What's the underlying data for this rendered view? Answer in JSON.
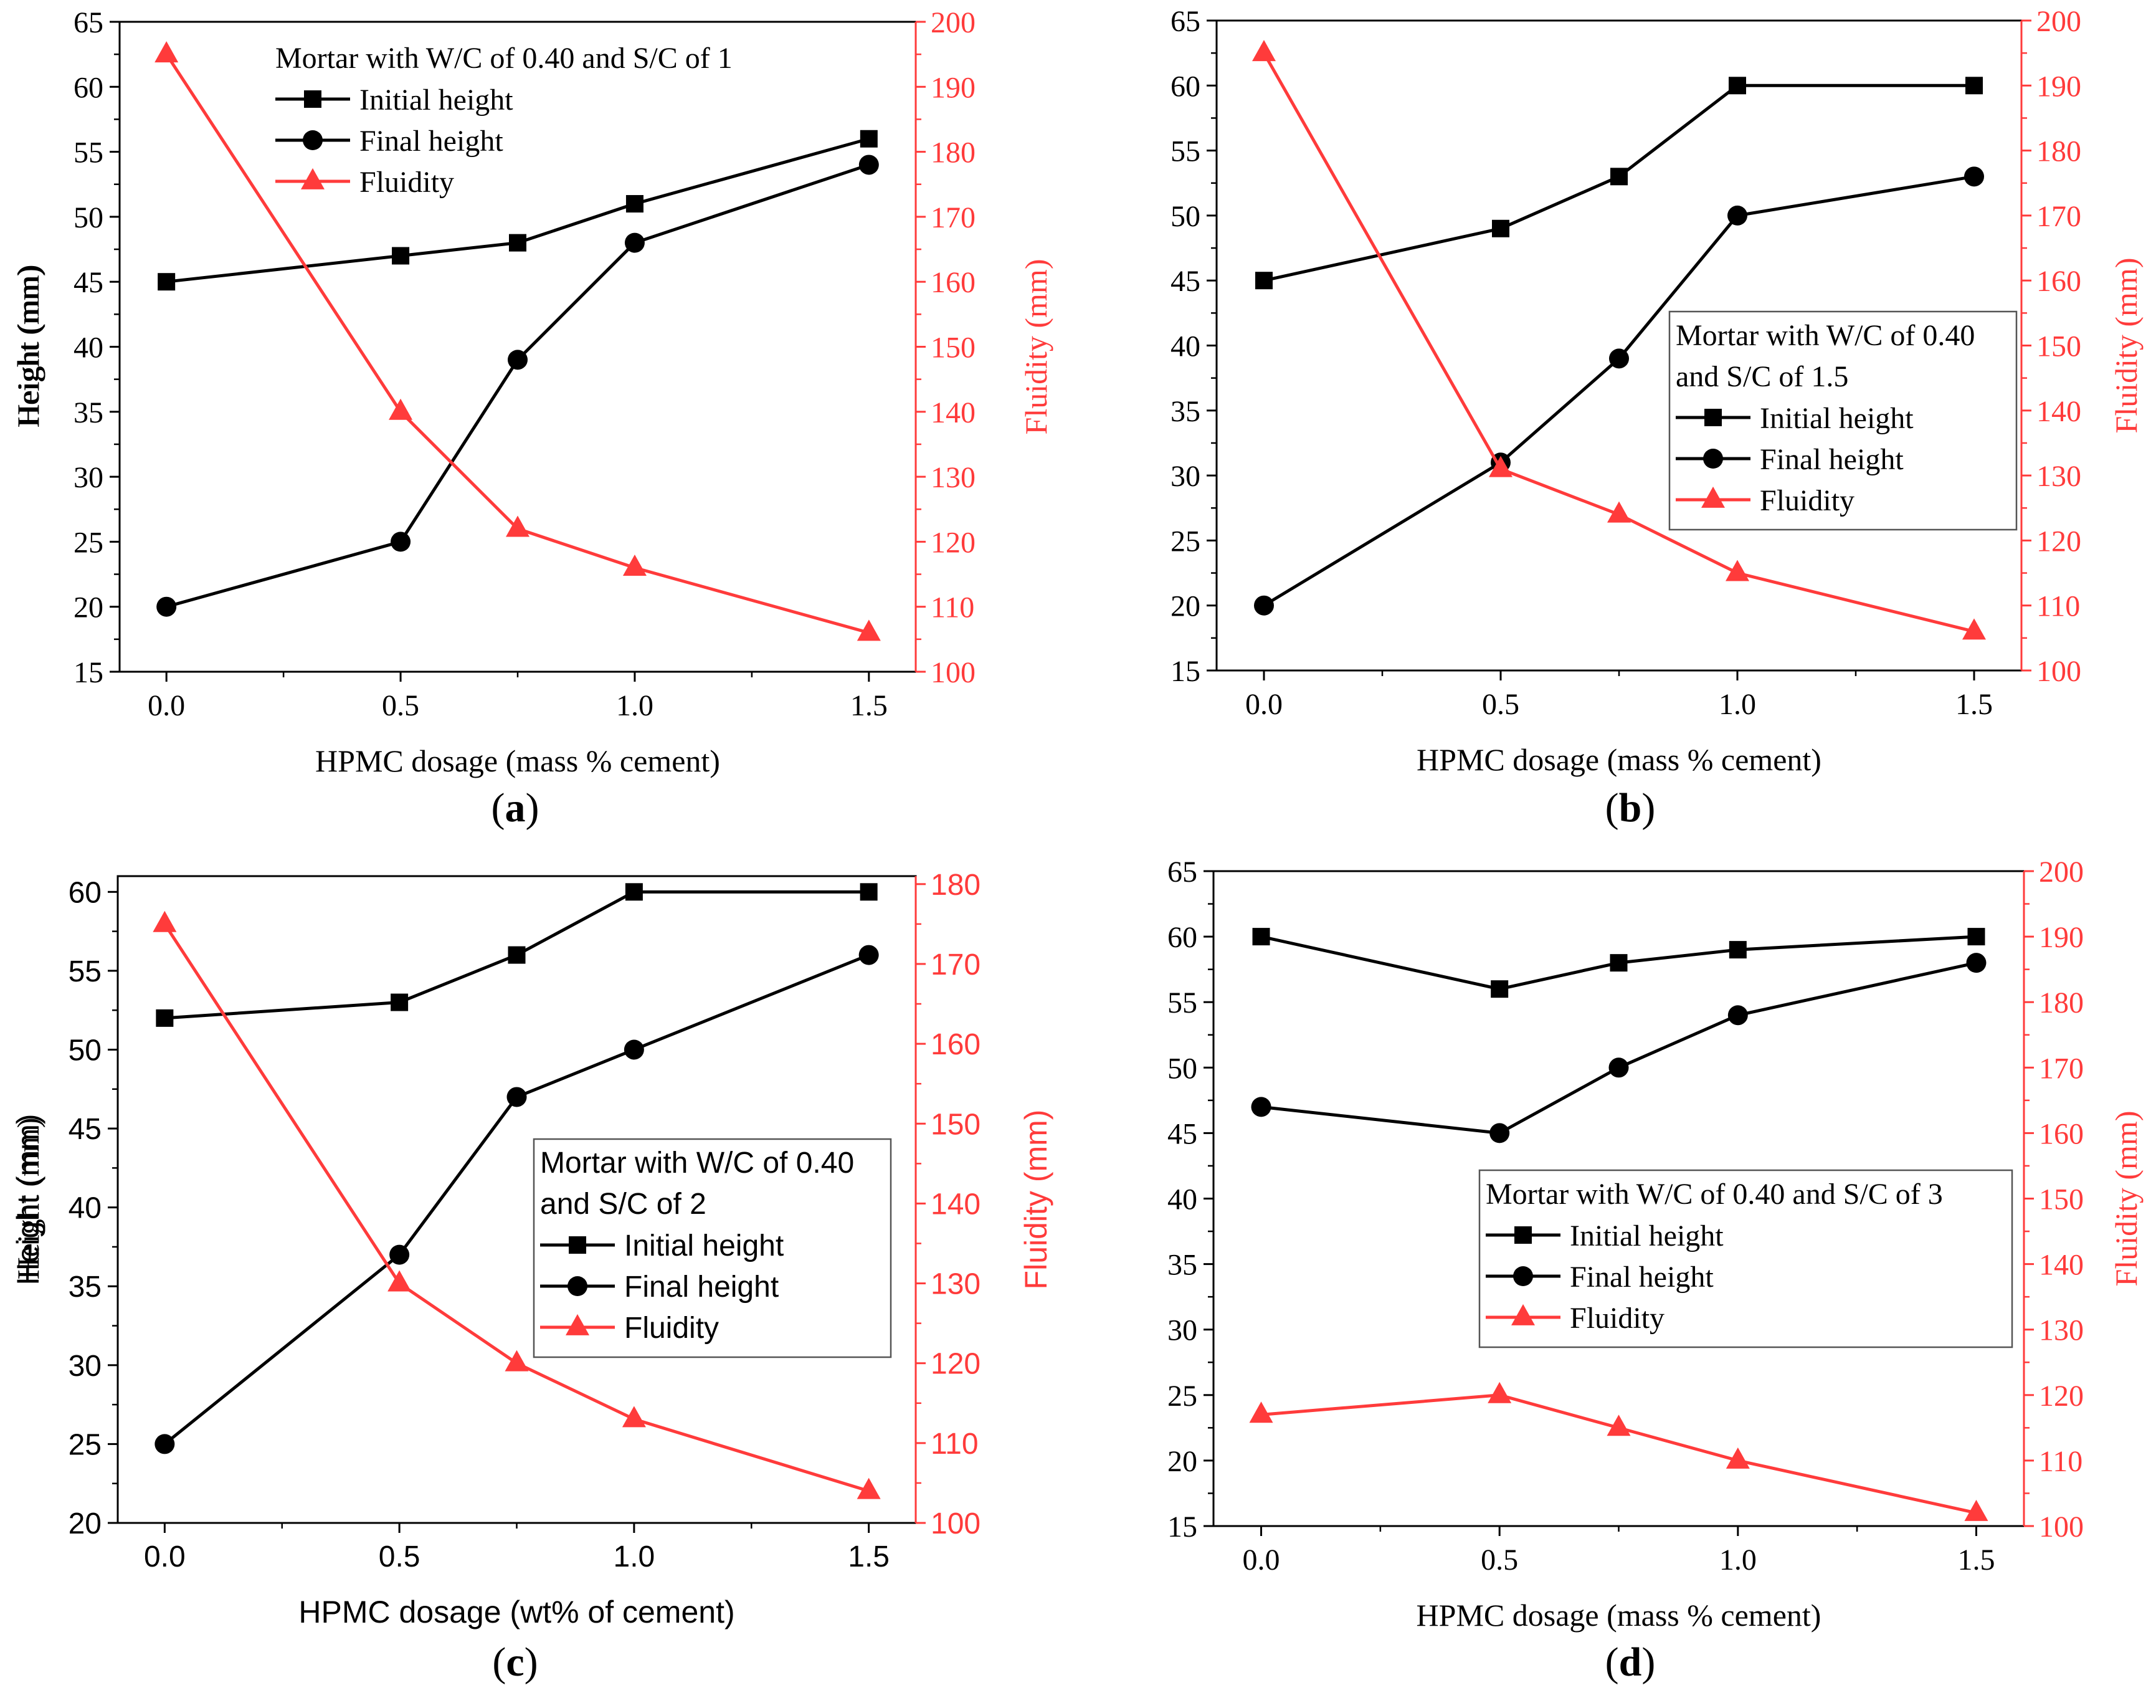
{
  "colors": {
    "left_axis": "#000000",
    "right_axis": "#ff3b3b",
    "fluidity": "#ff3b3b",
    "height": "#000000"
  },
  "chart_data": [
    {
      "panel_label": "(a)",
      "panel_letter": "a",
      "font": "serif",
      "type": "line",
      "x": [
        0.0,
        0.5,
        0.75,
        1.0,
        1.5
      ],
      "xlabel": "HPMC dosage (mass % cement)",
      "xticks": [
        "0.0",
        "0.5",
        "1.0",
        "1.5"
      ],
      "xlim": [
        -0.1,
        1.6
      ],
      "ylabel": "Height (mm)",
      "ylim": [
        15,
        65
      ],
      "yticks": [
        "15",
        "20",
        "25",
        "30",
        "35",
        "40",
        "45",
        "50",
        "55",
        "60",
        "65"
      ],
      "y2label": "Fluidity (mm)",
      "y2lim": [
        100,
        200
      ],
      "y2ticks": [
        "100",
        "110",
        "120",
        "130",
        "140",
        "150",
        "160",
        "170",
        "180",
        "190",
        "200"
      ],
      "legend": {
        "lines": [
          "Mortar with W/C of 0.40 and S/C of 1"
        ],
        "placement": "top-center",
        "frame": false
      },
      "series": [
        {
          "name": "Initial height",
          "marker": "square",
          "axis": "left",
          "values": [
            45,
            47,
            48,
            51,
            56
          ]
        },
        {
          "name": "Final height",
          "marker": "circle",
          "axis": "left",
          "values": [
            20,
            25,
            39,
            48,
            54
          ]
        },
        {
          "name": "Fluidity",
          "marker": "triangle",
          "axis": "right",
          "values": [
            195,
            140,
            122,
            116,
            106
          ]
        }
      ]
    },
    {
      "panel_label": "(b)",
      "panel_letter": "b",
      "font": "serif",
      "type": "line",
      "x": [
        0.0,
        0.5,
        0.75,
        1.0,
        1.5
      ],
      "xlabel": "HPMC dosage (mass % cement)",
      "xticks": [
        "0.0",
        "0.5",
        "1.0",
        "1.5"
      ],
      "xlim": [
        -0.1,
        1.6
      ],
      "ylabel": "Height (mm)",
      "ylim": [
        15,
        65
      ],
      "yticks": [
        "15",
        "20",
        "25",
        "30",
        "35",
        "40",
        "45",
        "50",
        "55",
        "60",
        "65"
      ],
      "y2label": "Fluidity (mm)",
      "y2lim": [
        100,
        200
      ],
      "y2ticks": [
        "100",
        "110",
        "120",
        "130",
        "140",
        "150",
        "160",
        "170",
        "180",
        "190",
        "200"
      ],
      "legend": {
        "lines": [
          "Mortar with W/C of 0.40",
          "and S/C of 1.5"
        ],
        "placement": "center-right",
        "frame": true
      },
      "series": [
        {
          "name": "Initial height",
          "marker": "square",
          "axis": "left",
          "values": [
            45,
            49,
            53,
            60,
            60
          ]
        },
        {
          "name": "Final height",
          "marker": "circle",
          "axis": "left",
          "values": [
            20,
            31,
            39,
            50,
            53
          ]
        },
        {
          "name": "Fluidity",
          "marker": "triangle",
          "axis": "right",
          "values": [
            195,
            131,
            124,
            115,
            106
          ]
        }
      ]
    },
    {
      "panel_label": "(c)",
      "panel_letter": "c",
      "font": "sans",
      "type": "line",
      "x": [
        0.0,
        0.5,
        0.75,
        1.0,
        1.5
      ],
      "xlabel": "HPMC dosage (wt% of cement)",
      "xticks": [
        "0.0",
        "0.5",
        "1.0",
        "1.5"
      ],
      "xlim": [
        -0.1,
        1.6
      ],
      "ylabel": "Height (mm)",
      "ylim": [
        20,
        61
      ],
      "yticks": [
        "20",
        "25",
        "30",
        "35",
        "40",
        "45",
        "50",
        "55",
        "60"
      ],
      "y2label": "Fluidity (mm)",
      "y2lim": [
        100,
        181
      ],
      "y2ticks": [
        "100",
        "110",
        "120",
        "130",
        "140",
        "150",
        "160",
        "170",
        "180"
      ],
      "legend": {
        "lines": [
          "Mortar with W/C of 0.40",
          "and S/C of 2"
        ],
        "placement": "center-right",
        "frame": true
      },
      "series": [
        {
          "name": "Initial height",
          "marker": "square",
          "axis": "left",
          "values": [
            52,
            53,
            56,
            60,
            60
          ]
        },
        {
          "name": "Final height",
          "marker": "circle",
          "axis": "left",
          "values": [
            25,
            37,
            47,
            50,
            56
          ]
        },
        {
          "name": "Fluidity",
          "marker": "triangle",
          "axis": "right",
          "values": [
            175,
            130,
            120,
            113,
            104
          ]
        }
      ]
    },
    {
      "panel_label": "(d)",
      "panel_letter": "d",
      "font": "serif",
      "type": "line",
      "x": [
        0.0,
        0.5,
        0.75,
        1.0,
        1.5
      ],
      "xlabel": "HPMC dosage (mass % cement)",
      "xticks": [
        "0.0",
        "0.5",
        "1.0",
        "1.5"
      ],
      "xlim": [
        -0.1,
        1.6
      ],
      "ylabel": "Height (mm)",
      "ylim": [
        15,
        65
      ],
      "yticks": [
        "15",
        "20",
        "25",
        "30",
        "35",
        "40",
        "45",
        "50",
        "55",
        "60",
        "65"
      ],
      "y2label": "Fluidity (mm)",
      "y2lim": [
        100,
        200
      ],
      "y2ticks": [
        "100",
        "110",
        "120",
        "130",
        "140",
        "150",
        "160",
        "170",
        "180",
        "190",
        "200"
      ],
      "legend": {
        "lines": [
          "Mortar with W/C of 0.40 and S/C of 3"
        ],
        "placement": "center-right",
        "frame": true
      },
      "series": [
        {
          "name": "Initial height",
          "marker": "square",
          "axis": "left",
          "values": [
            60,
            56,
            58,
            59,
            60
          ]
        },
        {
          "name": "Final height",
          "marker": "circle",
          "axis": "left",
          "values": [
            47,
            45,
            50,
            54,
            58
          ]
        },
        {
          "name": "Fluidity",
          "marker": "triangle",
          "axis": "right",
          "values": [
            117,
            120,
            115,
            110,
            102
          ]
        }
      ]
    }
  ]
}
